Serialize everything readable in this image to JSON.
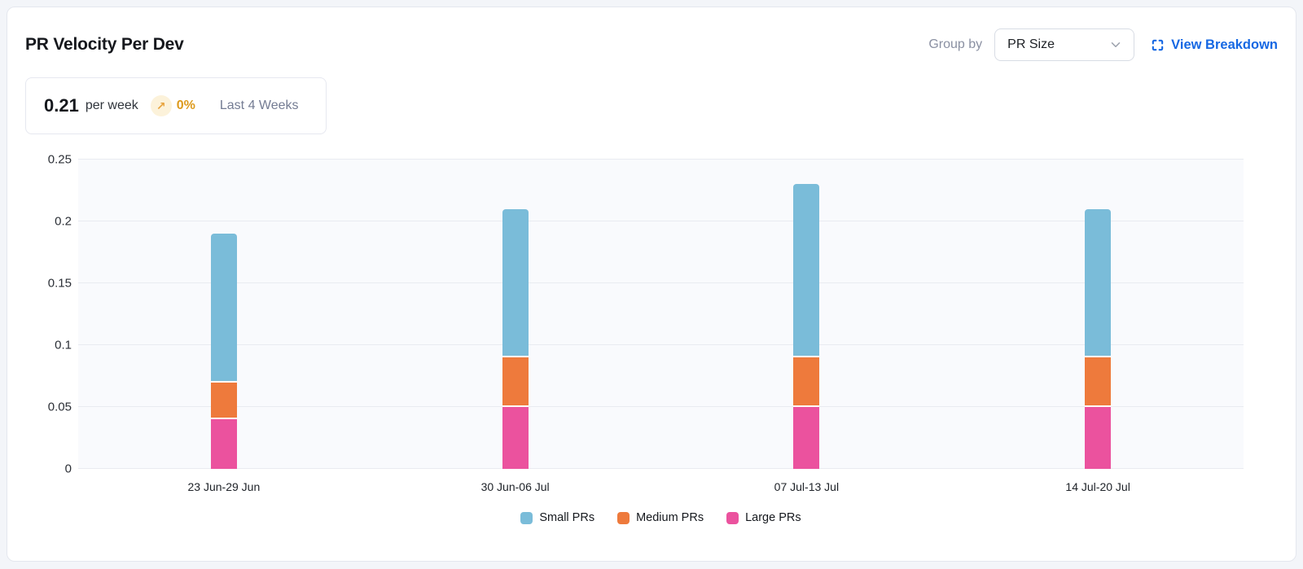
{
  "header": {
    "title": "PR Velocity Per Dev",
    "group_by_label": "Group by",
    "group_by_value": "PR Size",
    "view_breakdown_label": "View Breakdown",
    "accent_color": "#1668e3"
  },
  "summary": {
    "value": "0.21",
    "unit": "per week",
    "trend_arrow": "↗",
    "trend_percent": "0%",
    "period": "Last 4 Weeks",
    "trend_color": "#dd9a1c",
    "trend_circle_bg": "#fcf2da"
  },
  "icons": {
    "dropdown_chevron": "chevron-down",
    "view_breakdown": "expand-corners",
    "trend": "arrow-up-right"
  },
  "chart_data": {
    "type": "bar",
    "stacked": true,
    "title": "PR Velocity Per Dev",
    "xlabel": "",
    "ylabel": "",
    "categories": [
      "23 Jun-29 Jun",
      "30 Jun-06 Jul",
      "07 Jul-13 Jul",
      "14 Jul-20 Jul"
    ],
    "series": [
      {
        "name": "Small PRs",
        "color": "#7abcd9",
        "values": [
          0.12,
          0.12,
          0.14,
          0.12
        ]
      },
      {
        "name": "Medium PRs",
        "color": "#ee7a3c",
        "values": [
          0.03,
          0.04,
          0.04,
          0.04
        ]
      },
      {
        "name": "Large PRs",
        "color": "#eb529e",
        "values": [
          0.04,
          0.05,
          0.05,
          0.05
        ]
      }
    ],
    "stack_order_bottom_to_top": [
      "Large PRs",
      "Medium PRs",
      "Small PRs"
    ],
    "totals": [
      0.19,
      0.21,
      0.23,
      0.21
    ],
    "ylim": [
      0,
      0.25
    ],
    "yticks": [
      0,
      0.05,
      0.1,
      0.15,
      0.2,
      0.25
    ],
    "grid": true,
    "plot_background": "#f9fafd",
    "legend_position": "bottom"
  }
}
